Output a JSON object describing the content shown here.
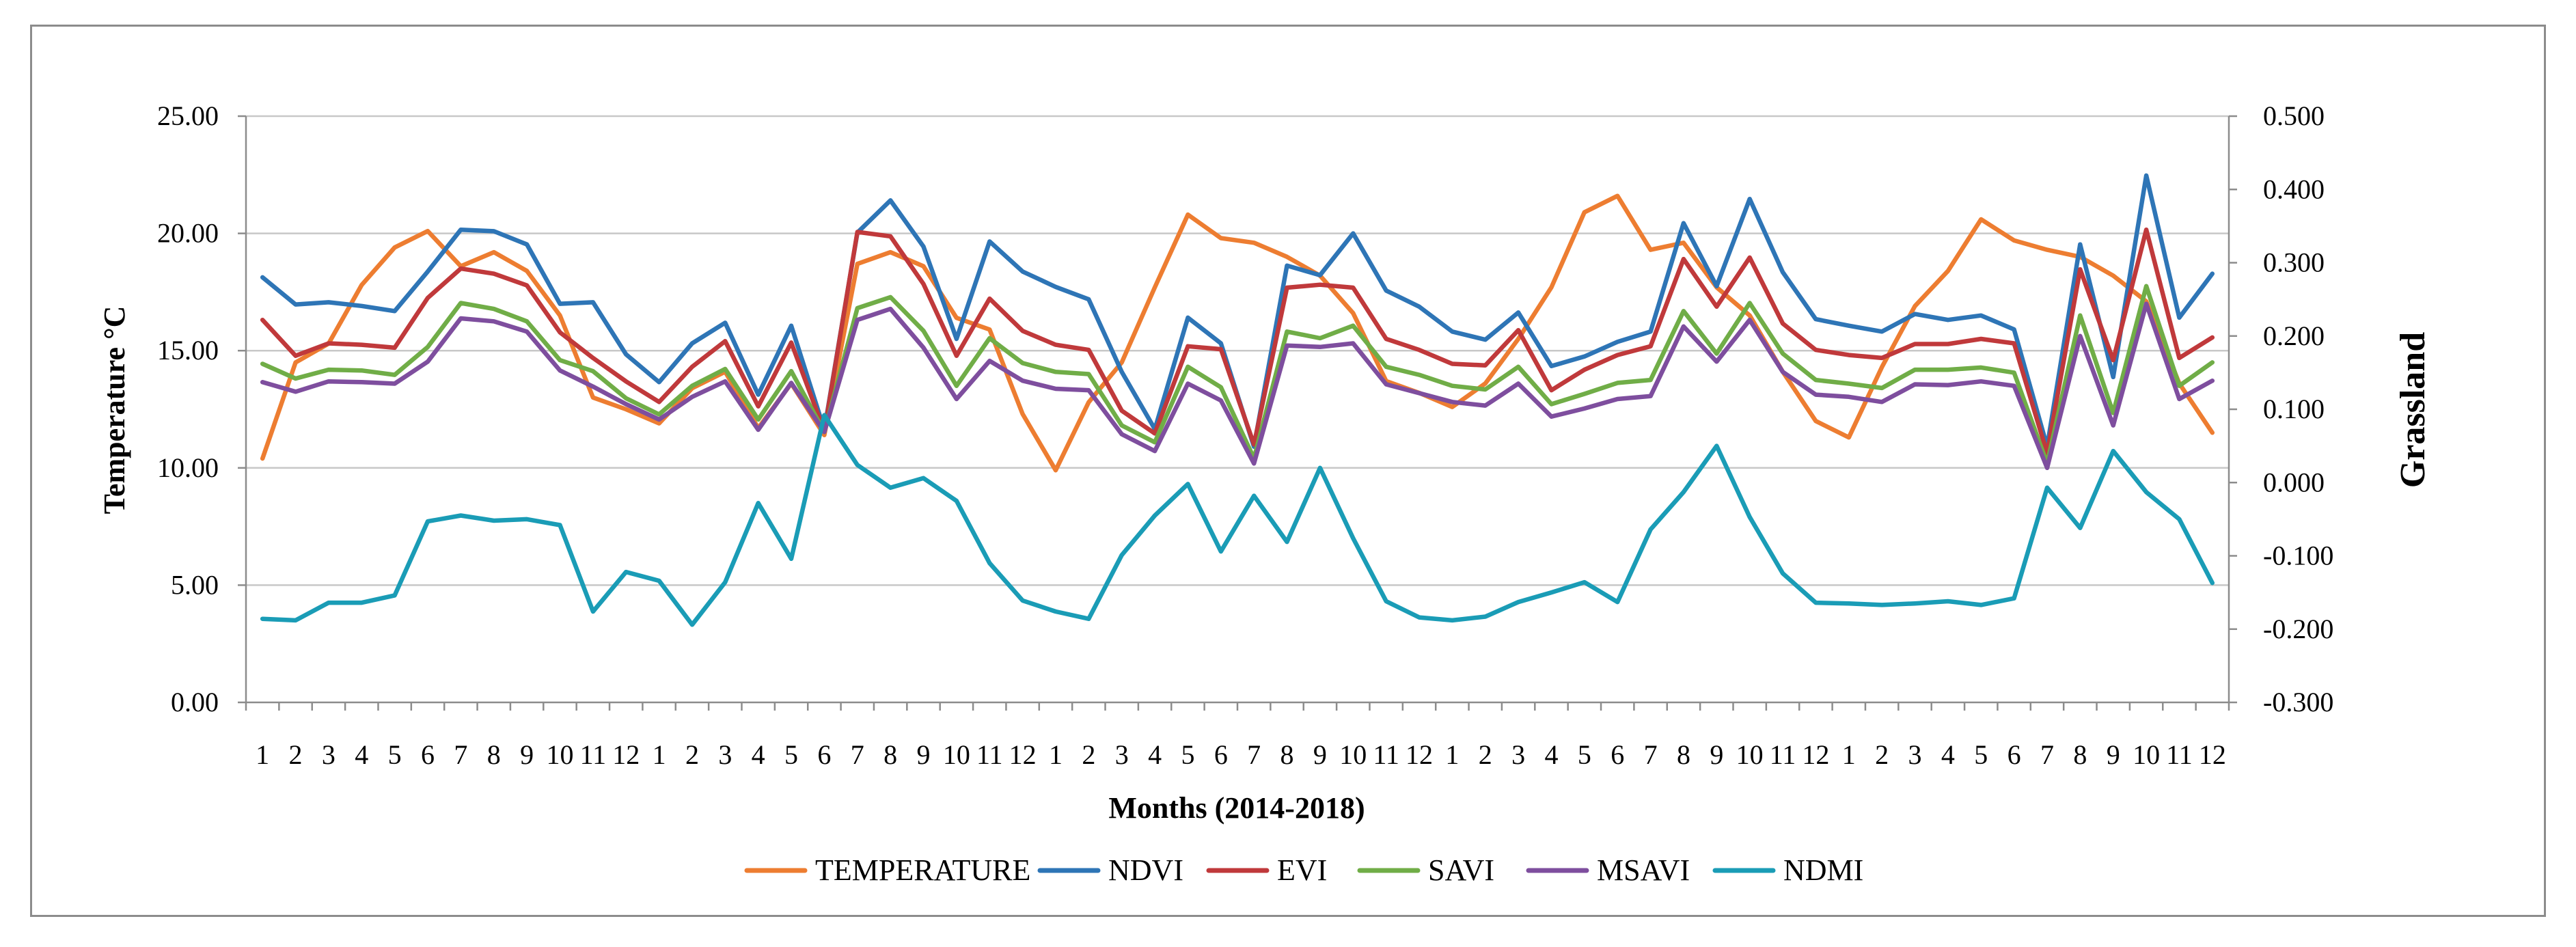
{
  "chart_data": {
    "type": "line",
    "title": "",
    "xlabel": "Months (2014-2018)",
    "ylabel_left": "Temperature °C",
    "ylabel_right": "Grassland",
    "categories": [
      "1",
      "2",
      "3",
      "4",
      "5",
      "6",
      "7",
      "8",
      "9",
      "10",
      "11",
      "12",
      "1",
      "2",
      "3",
      "4",
      "5",
      "6",
      "7",
      "8",
      "9",
      "10",
      "11",
      "12",
      "1",
      "2",
      "3",
      "4",
      "5",
      "6",
      "7",
      "8",
      "9",
      "10",
      "11",
      "12",
      "1",
      "2",
      "3",
      "4",
      "5",
      "6",
      "7",
      "8",
      "9",
      "10",
      "11",
      "12",
      "1",
      "2",
      "3",
      "4",
      "5",
      "6",
      "7",
      "8",
      "9",
      "10",
      "11",
      "12"
    ],
    "y_left": {
      "min": 0,
      "max": 25,
      "ticks": [
        "0.00",
        "5.00",
        "10.00",
        "15.00",
        "20.00",
        "25.00"
      ]
    },
    "y_right": {
      "min": -0.3,
      "max": 0.5,
      "ticks": [
        "-0.300",
        "-0.200",
        "-0.100",
        "0.000",
        "0.100",
        "0.200",
        "0.300",
        "0.400",
        "0.500"
      ]
    },
    "grid": true,
    "legend_position": "bottom",
    "series": [
      {
        "name": "TEMPERATURE",
        "axis": "left",
        "color": "#ED7D31",
        "values": [
          10.4,
          14.5,
          15.3,
          17.8,
          19.4,
          20.1,
          18.6,
          19.2,
          18.4,
          16.5,
          13.0,
          12.5,
          11.9,
          13.4,
          14.1,
          11.7,
          13.6,
          11.4,
          18.7,
          19.2,
          18.6,
          16.4,
          15.9,
          12.3,
          9.9,
          12.8,
          14.5,
          17.7,
          20.8,
          19.8,
          19.6,
          19.0,
          18.2,
          16.6,
          13.7,
          13.2,
          12.6,
          13.6,
          15.5,
          17.7,
          20.9,
          21.6,
          19.3,
          19.6,
          17.7,
          16.5,
          14.1,
          12.0,
          11.3,
          14.3,
          16.9,
          18.4,
          20.6,
          19.7,
          19.3,
          19.0,
          18.2,
          17.1,
          13.6,
          11.5
        ]
      },
      {
        "name": "NDVI",
        "axis": "right",
        "color": "#2E75B6",
        "values": [
          0.28,
          0.243,
          0.246,
          0.241,
          0.234,
          0.288,
          0.345,
          0.343,
          0.325,
          0.244,
          0.246,
          0.175,
          0.137,
          0.19,
          0.218,
          0.12,
          0.214,
          0.072,
          0.341,
          0.385,
          0.322,
          0.196,
          0.329,
          0.288,
          0.267,
          0.25,
          0.151,
          0.073,
          0.225,
          0.19,
          0.049,
          0.296,
          0.283,
          0.34,
          0.262,
          0.24,
          0.206,
          0.195,
          0.232,
          0.159,
          0.172,
          0.192,
          0.206,
          0.354,
          0.268,
          0.387,
          0.287,
          0.223,
          0.214,
          0.206,
          0.23,
          0.222,
          0.228,
          0.209,
          0.049,
          0.325,
          0.144,
          0.419,
          0.225,
          0.285
        ]
      },
      {
        "name": "EVI",
        "axis": "right",
        "color": "#C0393B",
        "values": [
          0.222,
          0.173,
          0.19,
          0.188,
          0.184,
          0.252,
          0.292,
          0.285,
          0.269,
          0.205,
          0.17,
          0.138,
          0.11,
          0.158,
          0.193,
          0.104,
          0.191,
          0.07,
          0.342,
          0.336,
          0.271,
          0.173,
          0.251,
          0.207,
          0.188,
          0.181,
          0.098,
          0.067,
          0.186,
          0.182,
          0.052,
          0.266,
          0.27,
          0.266,
          0.196,
          0.181,
          0.162,
          0.16,
          0.208,
          0.126,
          0.154,
          0.174,
          0.186,
          0.305,
          0.24,
          0.307,
          0.217,
          0.181,
          0.174,
          0.17,
          0.189,
          0.189,
          0.196,
          0.19,
          0.04,
          0.291,
          0.167,
          0.345,
          0.17,
          0.198
        ]
      },
      {
        "name": "SAVI",
        "axis": "right",
        "color": "#70AD47",
        "values": [
          0.162,
          0.142,
          0.154,
          0.153,
          0.147,
          0.185,
          0.245,
          0.237,
          0.22,
          0.167,
          0.152,
          0.115,
          0.093,
          0.132,
          0.155,
          0.086,
          0.152,
          0.069,
          0.238,
          0.253,
          0.207,
          0.132,
          0.197,
          0.163,
          0.151,
          0.148,
          0.078,
          0.055,
          0.158,
          0.13,
          0.033,
          0.206,
          0.197,
          0.214,
          0.158,
          0.147,
          0.132,
          0.127,
          0.158,
          0.107,
          0.121,
          0.136,
          0.14,
          0.234,
          0.176,
          0.245,
          0.176,
          0.14,
          0.135,
          0.129,
          0.154,
          0.154,
          0.157,
          0.15,
          0.026,
          0.228,
          0.095,
          0.268,
          0.132,
          0.164
        ]
      },
      {
        "name": "MSAVI",
        "axis": "right",
        "color": "#7E4E9E",
        "values": [
          0.137,
          0.124,
          0.138,
          0.137,
          0.135,
          0.165,
          0.224,
          0.22,
          0.206,
          0.153,
          0.131,
          0.107,
          0.086,
          0.117,
          0.138,
          0.072,
          0.136,
          0.069,
          0.222,
          0.237,
          0.184,
          0.114,
          0.166,
          0.139,
          0.128,
          0.126,
          0.066,
          0.043,
          0.135,
          0.112,
          0.026,
          0.187,
          0.185,
          0.19,
          0.134,
          0.122,
          0.11,
          0.105,
          0.135,
          0.09,
          0.101,
          0.114,
          0.118,
          0.213,
          0.165,
          0.222,
          0.151,
          0.12,
          0.117,
          0.11,
          0.134,
          0.133,
          0.138,
          0.132,
          0.02,
          0.2,
          0.078,
          0.244,
          0.114,
          0.139
        ]
      },
      {
        "name": "NDMI",
        "axis": "right",
        "color": "#1A9CB6",
        "values": [
          -0.186,
          -0.188,
          -0.164,
          -0.164,
          -0.154,
          -0.053,
          -0.045,
          -0.052,
          -0.05,
          -0.058,
          -0.176,
          -0.122,
          -0.134,
          -0.194,
          -0.136,
          -0.028,
          -0.104,
          0.092,
          0.024,
          -0.007,
          0.006,
          -0.025,
          -0.11,
          -0.161,
          -0.176,
          -0.186,
          -0.099,
          -0.045,
          -0.002,
          -0.094,
          -0.018,
          -0.081,
          0.02,
          -0.076,
          -0.162,
          -0.184,
          -0.188,
          -0.183,
          -0.163,
          -0.15,
          -0.136,
          -0.163,
          -0.064,
          -0.013,
          0.05,
          -0.047,
          -0.124,
          -0.164,
          -0.165,
          -0.167,
          -0.165,
          -0.162,
          -0.167,
          -0.158,
          -0.007,
          -0.062,
          0.043,
          -0.013,
          -0.05,
          -0.137
        ]
      }
    ]
  }
}
